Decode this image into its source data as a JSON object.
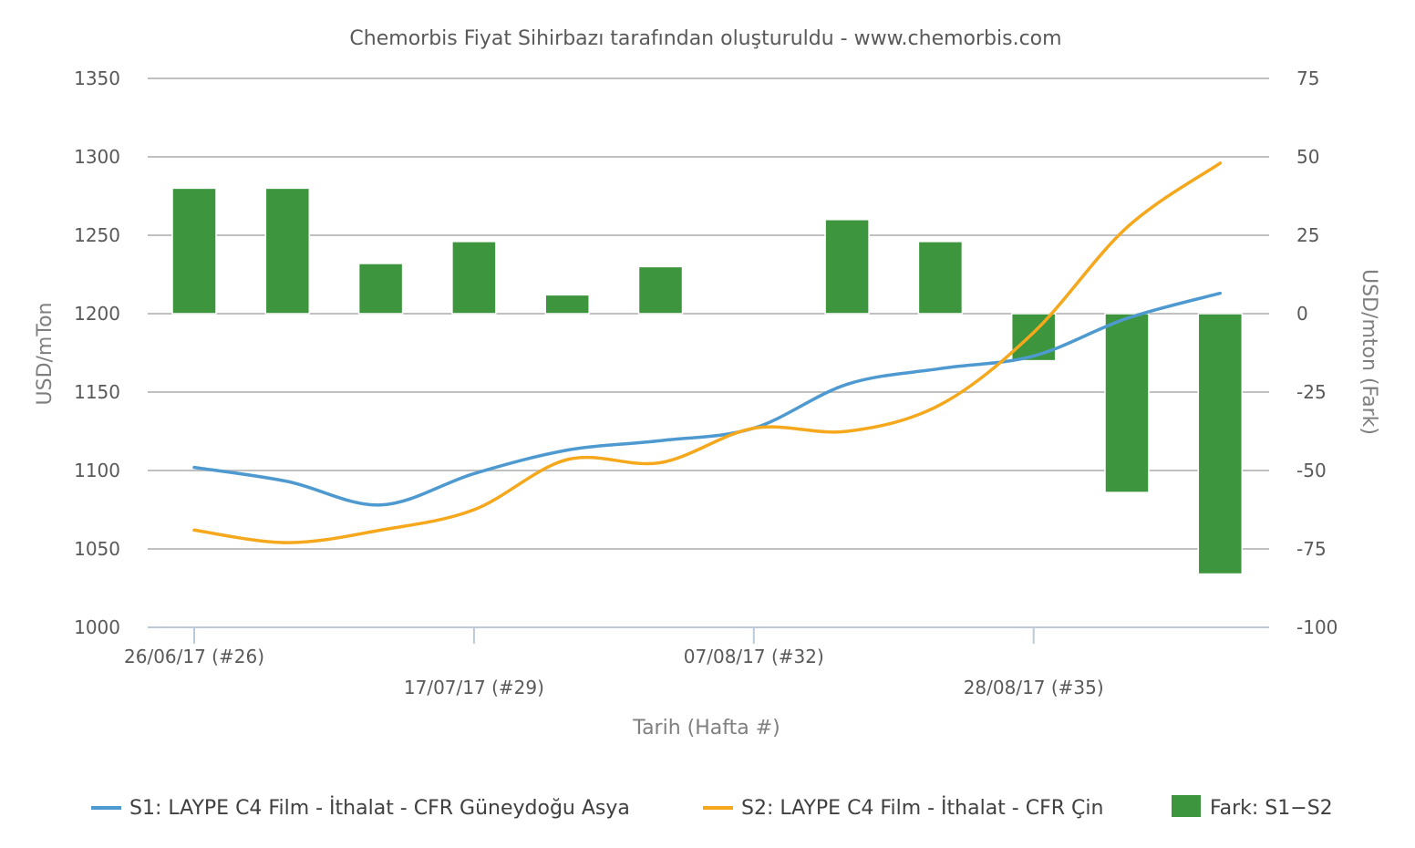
{
  "chart_data": {
    "type": "line",
    "title": "Chemorbis Fiyat Sihirbazı tarafından oluşturuldu - www.chemorbis.com",
    "xlabel": "Tarih (Hafta #)",
    "ylabel": "USD/mTon",
    "y2label": "USD/mton (Fark)",
    "ylim": [
      1000,
      1350
    ],
    "y2lim": [
      -100,
      75
    ],
    "yticks": [
      "1000",
      "1050",
      "1100",
      "1150",
      "1200",
      "1250",
      "1300",
      "1350"
    ],
    "y2ticks": [
      "-100",
      "-75",
      "-50",
      "-25",
      "0",
      "25",
      "50",
      "75"
    ],
    "x_tick_labels": [
      {
        "label": "26/06/17 (#26)",
        "index": 0
      },
      {
        "label": "17/07/17 (#29)",
        "index": 3
      },
      {
        "label": "07/08/17 (#32)",
        "index": 6
      },
      {
        "label": "28/08/17 (#35)",
        "index": 9
      }
    ],
    "grid": true,
    "legend_position": "bottom",
    "series": [
      {
        "name": "S1: LAYPE C4 Film - İthalat - CFR Güneydoğu Asya",
        "kind": "line",
        "axis": "left",
        "color": "#4e9ad0",
        "values": [
          1102,
          1093,
          1078,
          1098,
          1113,
          1119,
          1127,
          1155,
          1165,
          1173,
          1197,
          1213
        ]
      },
      {
        "name": "S2: LAYPE C4 Film - İthalat - CFR Çin",
        "kind": "line",
        "axis": "left",
        "color": "#f5a81c",
        "values": [
          1062,
          1054,
          1062,
          1075,
          1107,
          1105,
          1127,
          1125,
          1142,
          1188,
          1255,
          1296
        ]
      },
      {
        "name": "Fark: S1−S2",
        "kind": "bar",
        "axis": "right",
        "color": "#3d963d",
        "values": [
          40,
          40,
          16,
          23,
          6,
          15,
          0,
          30,
          23,
          -15,
          -57,
          -83
        ]
      }
    ]
  }
}
